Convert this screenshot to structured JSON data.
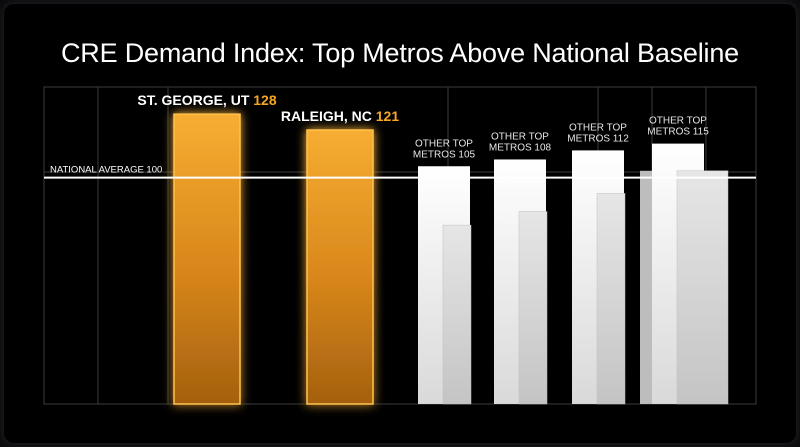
{
  "title": "CRE Demand Index: Top Metros Above National Baseline",
  "chart_data": {
    "type": "bar",
    "title": "CRE Demand Index: Top Metros Above National Baseline",
    "xlabel": "",
    "ylabel": "",
    "ylim": [
      0,
      140
    ],
    "grid": true,
    "baseline": {
      "label": "NATIONAL AVERAGE 100",
      "value": 100
    },
    "series": [
      {
        "values": [
          {
            "label": "ST. GEORGE, UT",
            "value": 128,
            "value_text": "128",
            "highlight": true
          },
          {
            "label": "RALEIGH, NC",
            "value": 121,
            "value_text": "121",
            "highlight": true
          },
          {
            "label_lines": [
              "OTHER TOP",
              "METROS 105"
            ],
            "value": 105,
            "highlight": false
          },
          {
            "label_lines": [
              "OTHER TOP",
              "METROS 108"
            ],
            "value": 108,
            "highlight": false
          },
          {
            "label_lines": [
              "OTHER TOP",
              "METROS 112"
            ],
            "value": 112,
            "highlight": false
          },
          {
            "label_lines": [
              "OTHER TOP",
              "METROS 115"
            ],
            "value": 115,
            "highlight": false
          }
        ]
      }
    ],
    "colors": {
      "highlight": "#f2a22a",
      "highlight_label": "#ffffff",
      "highlight_value": "#f5a623",
      "other": "#efefef",
      "grid": "#3c3c3c",
      "baseline": "#ffffff"
    }
  }
}
